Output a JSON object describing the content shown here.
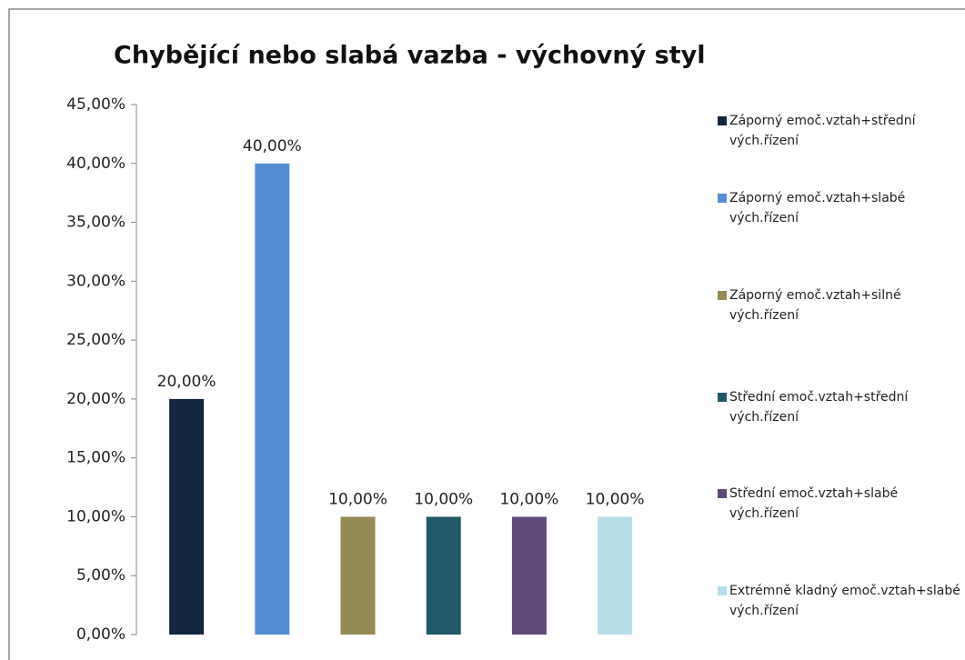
{
  "chart_data": {
    "type": "bar",
    "title": "Chybějící nebo slabá vazba - výchovný styl",
    "series": [
      {
        "name": "Záporný emoč.vztah+střední vých.řízení",
        "color": "#13263f",
        "values": [
          20
        ],
        "value_labels": [
          "20,00%"
        ]
      },
      {
        "name": "Záporný emoč.vztah+slabé vých.řízení",
        "color": "#558ed5",
        "values": [
          40
        ],
        "value_labels": [
          "40,00%"
        ]
      },
      {
        "name": "Záporný emoč.vztah+silné vých.řízení",
        "color": "#948a54",
        "values": [
          10
        ],
        "value_labels": [
          "10,00%"
        ]
      },
      {
        "name": "Střední emoč.vztah+střední vých.řízení",
        "color": "#215968",
        "values": [
          10
        ],
        "value_labels": [
          "10,00%"
        ]
      },
      {
        "name": "Střední emoč.vztah+slabé vých.řízení",
        "color": "#604a7b",
        "values": [
          10
        ],
        "value_labels": [
          "10,00%"
        ]
      },
      {
        "name": "Extrémně kladný emoč.vztah+slabé vých.řízení",
        "color": "#b7dde8",
        "values": [
          10
        ],
        "value_labels": [
          "10,00%"
        ]
      }
    ],
    "ylim": [
      0,
      45
    ],
    "yticks": [
      {
        "value": 0,
        "label": "0,00%"
      },
      {
        "value": 5,
        "label": "5,00%"
      },
      {
        "value": 10,
        "label": "10,00%"
      },
      {
        "value": 15,
        "label": "15,00%"
      },
      {
        "value": 20,
        "label": "20,00%"
      },
      {
        "value": 25,
        "label": "25,00%"
      },
      {
        "value": 30,
        "label": "30,00%"
      },
      {
        "value": 35,
        "label": "35,00%"
      },
      {
        "value": 40,
        "label": "40,00%"
      },
      {
        "value": 45,
        "label": "45,00%"
      }
    ],
    "grid": false,
    "legend": "right"
  }
}
